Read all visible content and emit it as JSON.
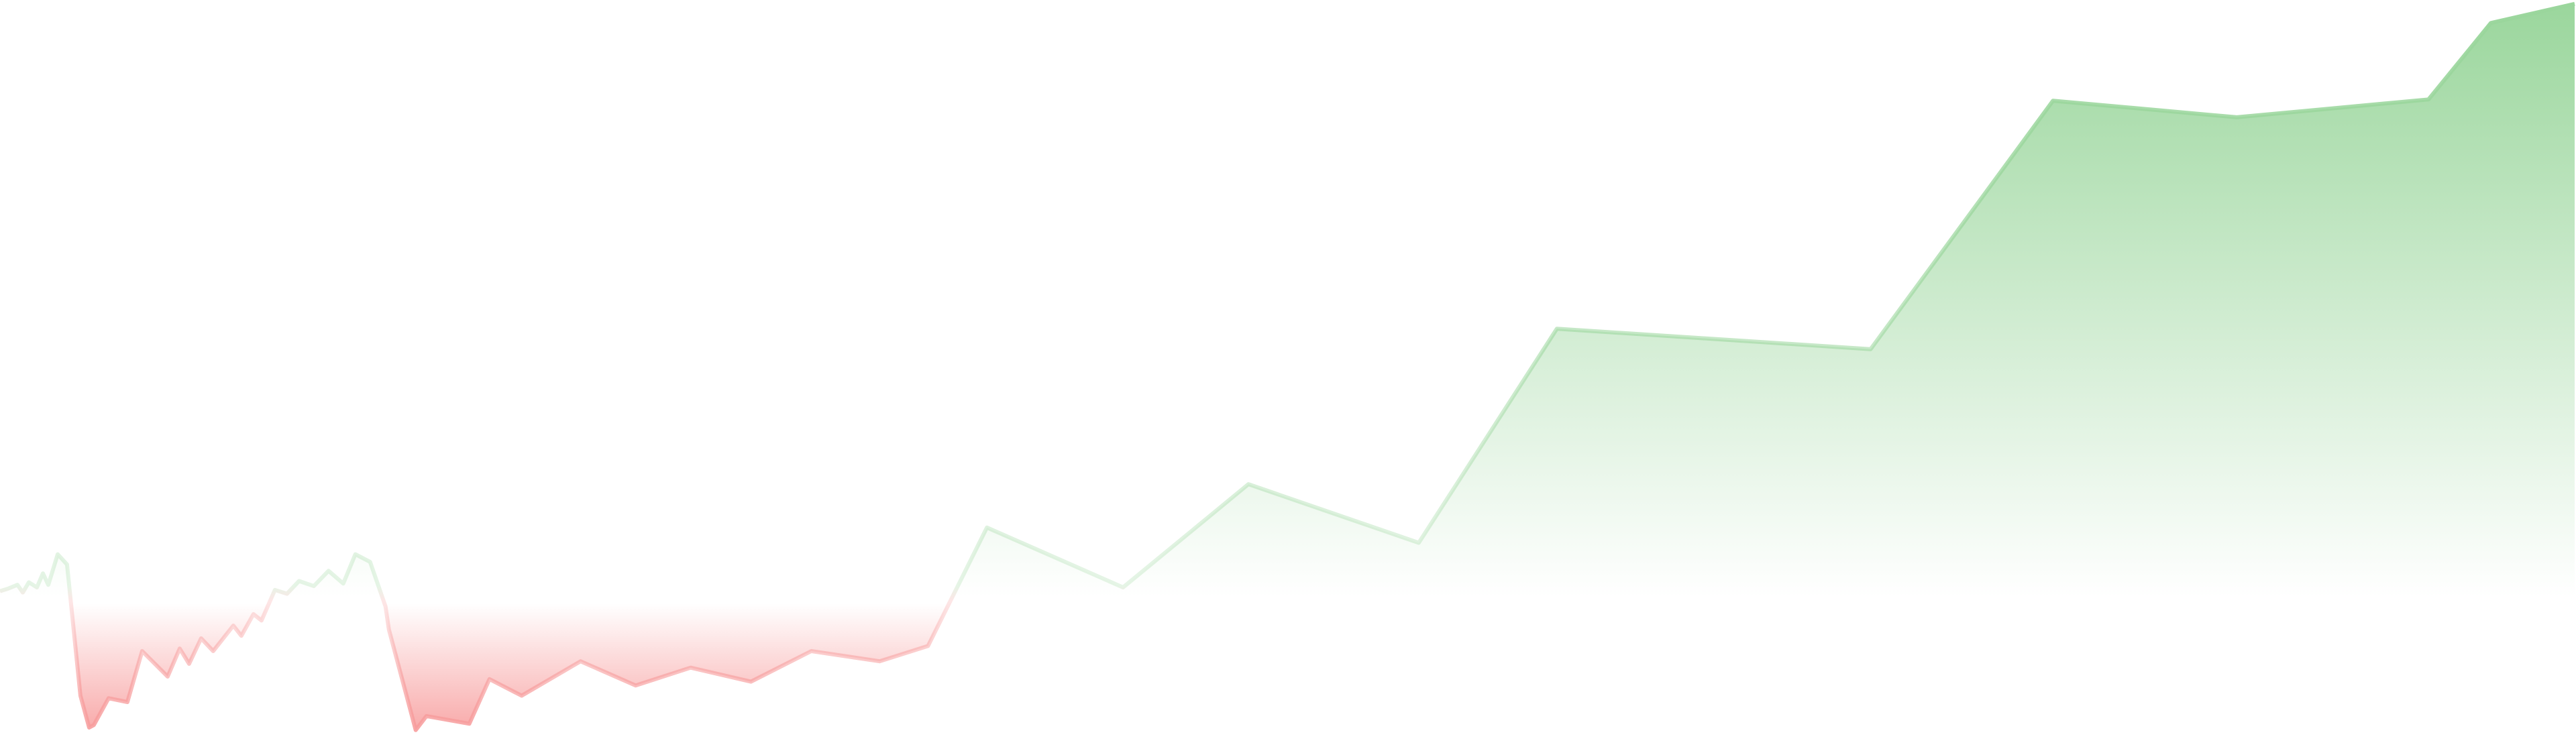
{
  "chart_data": {
    "type": "area",
    "baseline_value": 0,
    "grid": false,
    "legend": "none",
    "axes_visible": false,
    "x": [
      0,
      12,
      26,
      34,
      43,
      55,
      64,
      72,
      86,
      100,
      120,
      133,
      140,
      162,
      190,
      212,
      250,
      268,
      282,
      300,
      318,
      348,
      360,
      378,
      390,
      410,
      428,
      446,
      468,
      490,
      512,
      530,
      552,
      575,
      580,
      620,
      636,
      700,
      730,
      778,
      866,
      948,
      1030,
      1120,
      1210,
      1312,
      1384,
      1472,
      1675,
      1862,
      2116,
      2322,
      2790,
      3062,
      3336,
      3622,
      3715,
      3840
    ],
    "y": [
      7,
      9,
      12,
      6,
      14,
      10,
      21,
      12,
      36,
      28,
      -75,
      -100,
      -98,
      -77,
      -80,
      -40,
      -60,
      -38,
      -50,
      -30,
      -40,
      -20,
      -28,
      -11,
      -16,
      8,
      5,
      15,
      11,
      23,
      13,
      36,
      30,
      -5,
      -23,
      -102,
      -91,
      -97,
      -62,
      -75,
      -48,
      -67,
      -53,
      -64,
      -40,
      -48,
      -36,
      57,
      10,
      91,
      45,
      213,
      197,
      392,
      379,
      393,
      453,
      468
    ],
    "colors": {
      "positive": "#9ad69c",
      "negative": "#f79c9c"
    }
  }
}
